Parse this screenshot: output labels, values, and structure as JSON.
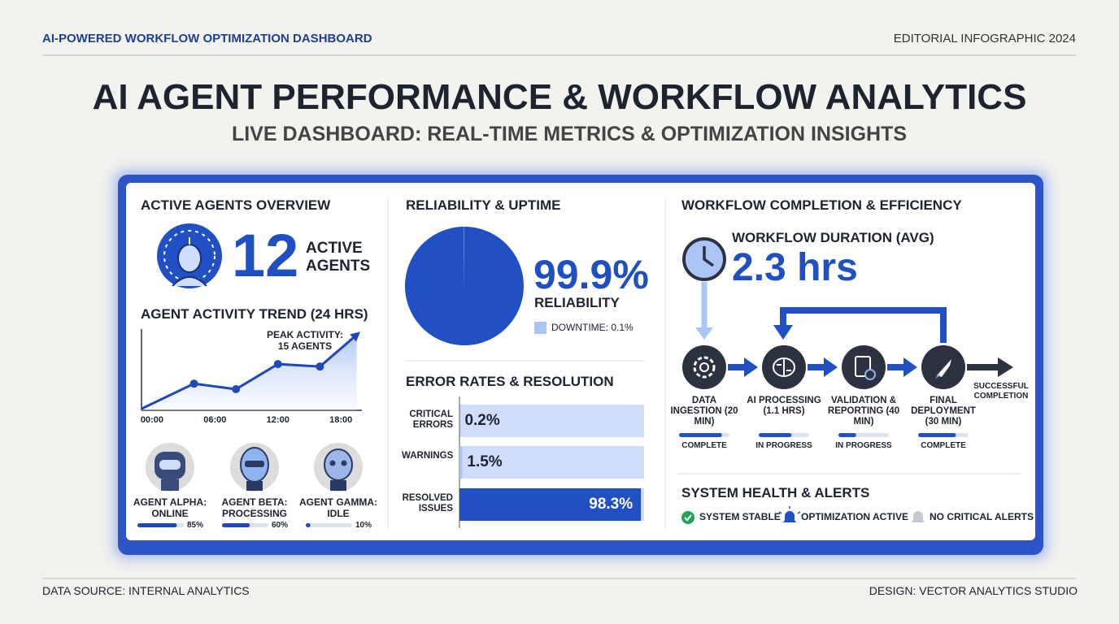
{
  "header": {
    "kicker": "AI-POWERED WORKFLOW OPTIMIZATION DASHBOARD",
    "edition": "EDITORIAL INFOGRAPHIC 2024",
    "title": "AI AGENT PERFORMANCE & WORKFLOW ANALYTICS",
    "subtitle": "LIVE DASHBOARD: REAL-TIME METRICS & OPTIMIZATION INSIGHTS"
  },
  "agents": {
    "heading": "ACTIVE AGENTS OVERVIEW",
    "count": 12,
    "count_label": "ACTIVE AGENTS",
    "trend": {
      "type": "line",
      "title": "AGENT ACTIVITY TREND (24 HRS)",
      "x": [
        -1,
        4,
        8,
        12,
        16,
        19.5
      ],
      "values": [
        0.3,
        5.3,
        4.2,
        9.2,
        8.7,
        15
      ],
      "xlim": [
        -1,
        20
      ],
      "ylim": [
        0,
        16
      ],
      "xticks": [
        {
          "value": 0,
          "label": "00:00"
        },
        {
          "value": 6,
          "label": "06:00"
        },
        {
          "value": 12,
          "label": "12:00"
        },
        {
          "value": 18,
          "label": "18:00"
        }
      ],
      "annotation": "PEAK ACTIVITY: 15 AGENTS",
      "color": "#2148b8"
    },
    "roster": {
      "type": "bar",
      "names": [
        "AGENT ALPHA: ONLINE",
        "AGENT BETA: PROCESSING",
        "AGENT GAMMA: IDLE"
      ],
      "values": [
        85,
        60,
        10
      ],
      "value_labels": [
        "85%",
        "60%",
        "10%"
      ],
      "xlim": [
        0,
        100
      ],
      "color": "#2148b8"
    }
  },
  "reliability": {
    "heading": "RELIABILITY & UPTIME",
    "type": "pie",
    "values": [
      99.9,
      0.1
    ],
    "value_label": "99.9%",
    "label": "RELIABILITY",
    "legend": "DOWNTIME: 0.1%",
    "colors": [
      "#2050c4",
      "#a9c4f5"
    ]
  },
  "errors": {
    "heading": "ERROR RATES & RESOLUTION",
    "type": "bar",
    "categories": [
      "CRITICAL ERRORS",
      "WARNINGS",
      "RESOLVED ISSUES"
    ],
    "values": [
      0.2,
      1.5,
      98.3
    ],
    "value_labels": [
      "0.2%",
      "1.5%",
      "98.3%"
    ],
    "xlim": [
      0,
      100
    ],
    "colors": [
      "#2050c4",
      "#a9c4f5",
      "#2050c4"
    ]
  },
  "workflow": {
    "heading": "WORKFLOW COMPLETION & EFFICIENCY",
    "duration_label": "WORKFLOW DURATION (AVG)",
    "duration": "2.3 hrs",
    "steps": [
      {
        "label": "DATA INGESTION (20 MIN)",
        "status": "COMPLETE",
        "progress": 85
      },
      {
        "label": "AI PROCESSING (1.1 HRS)",
        "status": "IN PROGRESS",
        "progress": 65
      },
      {
        "label": "VALIDATION & REPORTING (40 MIN)",
        "status": "IN PROGRESS",
        "progress": 35
      },
      {
        "label": "FINAL DEPLOYMENT (30 MIN)",
        "status": "COMPLETE",
        "progress": 75
      }
    ],
    "progress_xlim": [
      0,
      100
    ],
    "end_label": "SUCCESSFUL COMPLETION"
  },
  "health": {
    "heading": "SYSTEM HEALTH & ALERTS",
    "items": [
      "SYSTEM STABLE",
      "OPTIMIZATION ACTIVE",
      "NO CRITICAL ALERTS"
    ]
  },
  "footer": {
    "source": "DATA SOURCE: INTERNAL ANALYTICS",
    "credit": "DESIGN: VECTOR ANALYTICS STUDIO"
  }
}
